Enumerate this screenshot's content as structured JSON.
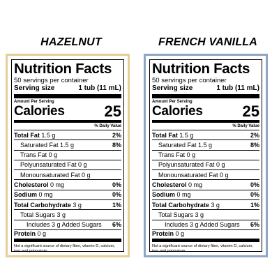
{
  "flavors": [
    {
      "name": "HAZELNUT",
      "border_color": "#e6cf95"
    },
    {
      "name": "FRENCH VANILLA",
      "border_color": "#8ea6c4"
    }
  ],
  "label": {
    "title": "Nutrition Facts",
    "servings_per_container": "50 servings per container",
    "serving_size_label": "Serving size",
    "serving_size_value": "1 tub (11 mL)",
    "amount_per_serving": "Amount Per Serving",
    "calories_label": "Calories",
    "calories_value": "25",
    "dv_header": "% Daily Value",
    "total_fat_label": "Total Fat",
    "total_fat_amount": " 1.5 g",
    "total_fat_dv": "2%",
    "saturated_fat": "Saturated Fat 1.5 g",
    "saturated_fat_dv": "8%",
    "trans_fat": "Trans Fat 0 g",
    "polyunsaturated_fat": "Polyunsaturated Fat 0 g",
    "monounsaturated_fat": "Monounsaturated Fat 0 g",
    "cholesterol_label": "Cholesterol",
    "cholesterol_amount": " 0 mg",
    "cholesterol_dv": "0%",
    "sodium_label": "Sodium",
    "sodium_amount": " 0 mg",
    "sodium_dv": "0%",
    "carb_label": "Total Carbohydrate",
    "carb_amount": " 3 g",
    "carb_dv": "1%",
    "total_sugars": "Total Sugars 3 g",
    "added_sugars": "Includes 3 g Added Sugars",
    "added_sugars_dv": "6%",
    "protein_label": "Protein",
    "protein_amount": " 0 g",
    "footnote": "Not a significant source of dietary fiber, vitamin D, calcium, iron and potassium."
  }
}
